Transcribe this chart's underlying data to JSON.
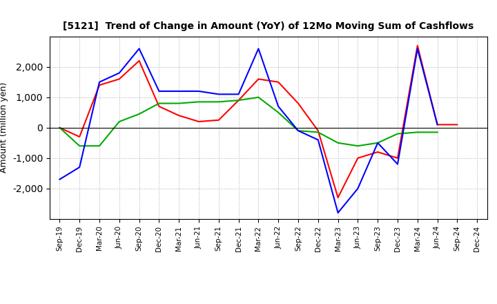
{
  "title": "[5121]  Trend of Change in Amount (YoY) of 12Mo Moving Sum of Cashflows",
  "ylabel": "Amount (million yen)",
  "x_labels": [
    "Sep-19",
    "Dec-19",
    "Mar-20",
    "Jun-20",
    "Sep-20",
    "Dec-20",
    "Mar-21",
    "Jun-21",
    "Sep-21",
    "Dec-21",
    "Mar-22",
    "Jun-22",
    "Sep-22",
    "Dec-22",
    "Mar-23",
    "Jun-23",
    "Sep-23",
    "Dec-23",
    "Mar-24",
    "Jun-24",
    "Sep-24",
    "Dec-24"
  ],
  "operating": [
    0,
    -300,
    1400,
    1600,
    2200,
    700,
    400,
    200,
    250,
    900,
    1600,
    1500,
    800,
    -100,
    -2300,
    -1000,
    -800,
    -1000,
    2700,
    100,
    100,
    null
  ],
  "investing": [
    0,
    -600,
    -600,
    200,
    450,
    800,
    800,
    850,
    850,
    900,
    1000,
    500,
    -100,
    -150,
    -500,
    -600,
    -500,
    -200,
    -150,
    -150,
    null,
    null
  ],
  "free": [
    -1700,
    -1300,
    1500,
    1800,
    2600,
    1200,
    1200,
    1200,
    1100,
    1100,
    2600,
    700,
    -100,
    -400,
    -2800,
    -2000,
    -500,
    -1200,
    2600,
    100,
    null,
    null
  ],
  "operating_color": "#ff0000",
  "investing_color": "#00aa00",
  "free_color": "#0000ff",
  "ylim": [
    -3000,
    3000
  ],
  "yticks": [
    -2000,
    -1000,
    0,
    1000,
    2000
  ],
  "background_color": "#ffffff",
  "grid_color": "#aaaaaa"
}
